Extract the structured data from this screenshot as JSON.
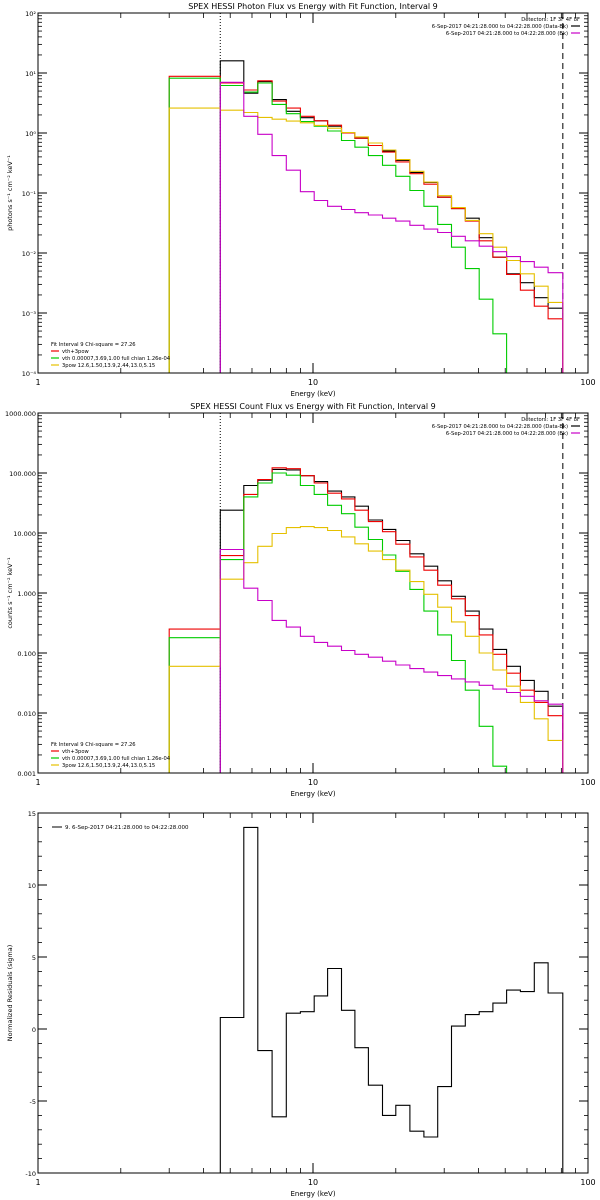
{
  "chart_data": [
    {
      "type": "line",
      "title": "SPEX HESSI Photon Flux vs Energy with Fit Function, Interval 9",
      "xlabel": "Energy (keV)",
      "ylabel": "photons s⁻¹ cm⁻² keV⁻¹",
      "xscale": "log",
      "yscale": "log",
      "xlim": [
        1,
        100
      ],
      "ylim": [
        0.0001,
        100
      ],
      "x_ticks": [
        {
          "v": 1,
          "label": "1"
        },
        {
          "v": 10,
          "label": "10"
        },
        {
          "v": 100,
          "label": "100"
        }
      ],
      "y_ticks": [
        {
          "v": 100,
          "label": "10²"
        },
        {
          "v": 10,
          "label": "10¹"
        },
        {
          "v": 1,
          "label": "10⁰"
        },
        {
          "v": 0.1,
          "label": "10⁻¹"
        },
        {
          "v": 0.01,
          "label": "10⁻²"
        },
        {
          "v": 0.001,
          "label": "10⁻³"
        },
        {
          "v": 0.0001,
          "label": "10⁻⁴"
        }
      ],
      "vlines": [
        {
          "x": 4.6,
          "style": "dotted"
        },
        {
          "x": 81,
          "style": "dashed"
        }
      ],
      "legend_top": [
        {
          "text": "Detectors: 1F 3F 4F 8F"
        },
        {
          "text": "6-Sep-2017 04:21:28.000 to 04:22:28.000 (Data-Bk)",
          "color": "#000000"
        },
        {
          "text": "6-Sep-2017 04:21:28.000 to 04:22:28.000 (Bk)",
          "color": "#c800c8"
        }
      ],
      "legend_bottom": [
        {
          "text": "Fit Interval 9   Chi-square = 27.26"
        },
        {
          "text": "vth+3pow",
          "color": "#ee0000"
        },
        {
          "text": "vth 0.00007,3.69,1.00  full chian 1.26e-04",
          "color": "#00cc00"
        },
        {
          "text": "3pow 12.6,1.50,13.9,2.44,13.0,5.15",
          "color": "#e5c000"
        }
      ],
      "series": [
        {
          "color": "#000000",
          "edges": [
            3.0,
            4.6,
            5.6,
            6.3,
            7.1,
            8.0,
            9.0,
            10.1,
            11.3,
            12.7,
            14.2,
            15.9,
            17.9,
            20.0,
            22.5,
            25.3,
            28.4,
            31.9,
            35.8,
            40.2,
            45.1,
            50.6,
            56.8,
            63.8,
            71.6,
            81.0
          ],
          "values": [
            0,
            16,
            4.6,
            7.2,
            3.6,
            2.3,
            1.8,
            1.6,
            1.3,
            1.0,
            0.82,
            0.62,
            0.5,
            0.35,
            0.22,
            0.15,
            0.085,
            0.055,
            0.038,
            0.018,
            0.0085,
            0.0045,
            0.0032,
            0.0018,
            0.0012
          ]
        },
        {
          "color": "#ee0000",
          "edges": [
            3.0,
            4.6,
            5.6,
            6.3,
            7.1,
            8.0,
            9.0,
            10.1,
            11.3,
            12.7,
            14.2,
            15.9,
            17.9,
            20.0,
            22.5,
            25.3,
            28.4,
            31.9,
            35.8,
            40.2,
            45.1,
            50.6,
            56.8,
            63.8,
            71.6,
            81.0
          ],
          "values": [
            8.8,
            6.8,
            5.2,
            7.4,
            3.4,
            2.6,
            1.9,
            1.6,
            1.35,
            1.0,
            0.82,
            0.62,
            0.48,
            0.33,
            0.21,
            0.14,
            0.085,
            0.055,
            0.034,
            0.016,
            0.0085,
            0.0044,
            0.0024,
            0.0013,
            0.0008
          ]
        },
        {
          "color": "#00cc00",
          "edges": [
            3.0,
            4.6,
            5.6,
            6.3,
            7.1,
            8.0,
            9.0,
            10.1,
            11.3,
            12.7,
            14.2,
            15.9,
            17.9,
            20.0,
            22.5,
            25.3,
            28.4,
            31.9,
            35.8,
            40.2,
            45.1,
            50.6
          ],
          "values": [
            8.2,
            6.2,
            4.8,
            6.8,
            3.0,
            2.1,
            1.55,
            1.3,
            1.08,
            0.75,
            0.58,
            0.42,
            0.29,
            0.19,
            0.11,
            0.06,
            0.03,
            0.0125,
            0.0055,
            0.0017,
            0.00045
          ]
        },
        {
          "color": "#e5c000",
          "edges": [
            3.0,
            4.6,
            5.6,
            6.3,
            7.1,
            8.0,
            9.0,
            10.1,
            11.3,
            12.7,
            14.2,
            15.9,
            17.9,
            20.0,
            22.5,
            25.3,
            28.4,
            31.9,
            35.8,
            40.2,
            45.1,
            50.6,
            56.8,
            63.8,
            71.6,
            81.0
          ],
          "values": [
            2.6,
            2.4,
            2.2,
            1.82,
            1.7,
            1.58,
            1.48,
            1.34,
            1.2,
            1.02,
            0.86,
            0.68,
            0.52,
            0.36,
            0.23,
            0.152,
            0.09,
            0.057,
            0.035,
            0.021,
            0.0125,
            0.0075,
            0.0045,
            0.0028,
            0.0015
          ]
        },
        {
          "color": "#c800c8",
          "edges": [
            4.6,
            5.6,
            6.3,
            7.1,
            8.0,
            9.0,
            10.1,
            11.3,
            12.7,
            14.2,
            15.9,
            17.9,
            20.0,
            22.5,
            25.3,
            28.4,
            31.9,
            35.8,
            40.2,
            45.1,
            50.6,
            56.8,
            63.8,
            71.6,
            81.0
          ],
          "values": [
            7.0,
            1.9,
            0.95,
            0.42,
            0.24,
            0.105,
            0.075,
            0.06,
            0.053,
            0.047,
            0.043,
            0.038,
            0.034,
            0.029,
            0.025,
            0.022,
            0.019,
            0.016,
            0.013,
            0.0105,
            0.0087,
            0.0072,
            0.0058,
            0.0047
          ]
        }
      ]
    },
    {
      "type": "line",
      "title": "SPEX HESSI Count Flux vs Energy with Fit Function, Interval 9",
      "xlabel": "Energy (keV)",
      "ylabel": "counts s⁻¹ cm⁻² keV⁻¹",
      "xscale": "log",
      "yscale": "log",
      "xlim": [
        1,
        100
      ],
      "ylim": [
        0.001,
        1000
      ],
      "x_ticks": [
        {
          "v": 1,
          "label": "1"
        },
        {
          "v": 10,
          "label": "10"
        },
        {
          "v": 100,
          "label": "100"
        }
      ],
      "y_ticks": [
        {
          "v": 1000,
          "label": "1000.000"
        },
        {
          "v": 100,
          "label": "100.000"
        },
        {
          "v": 10,
          "label": "10.000"
        },
        {
          "v": 1,
          "label": "1.000"
        },
        {
          "v": 0.1,
          "label": "0.100"
        },
        {
          "v": 0.01,
          "label": "0.010"
        },
        {
          "v": 0.001,
          "label": "0.001"
        }
      ],
      "vlines": [
        {
          "x": 4.6,
          "style": "dotted"
        },
        {
          "x": 81,
          "style": "dashed"
        }
      ],
      "legend_top": [
        {
          "text": "Detectors: 1F 3F 4F 8F"
        },
        {
          "text": "6-Sep-2017 04:21:28.000 to 04:22:28.000 (Data-Bk)",
          "color": "#000000"
        },
        {
          "text": "6-Sep-2017 04:21:28.000 to 04:22:28.000 (Bk)",
          "color": "#c800c8"
        }
      ],
      "legend_bottom": [
        {
          "text": "Fit Interval 9   Chi-square = 27.26"
        },
        {
          "text": "vth+3pow",
          "color": "#ee0000"
        },
        {
          "text": "vth 0.00007,3.69,1.00  full chian 1.26e-04",
          "color": "#00cc00"
        },
        {
          "text": "3pow 12.6,1.50,13.9,2.44,13.0,5.15",
          "color": "#e5c000"
        }
      ],
      "series": [
        {
          "color": "#000000",
          "edges": [
            4.6,
            5.6,
            6.3,
            7.1,
            8.0,
            9.0,
            10.1,
            11.3,
            12.7,
            14.2,
            15.9,
            17.9,
            20.0,
            22.5,
            25.3,
            28.4,
            31.9,
            35.8,
            40.2,
            45.1,
            50.6,
            56.8,
            63.8,
            71.6,
            81.0
          ],
          "values": [
            24,
            62,
            76,
            115,
            112,
            90,
            72,
            50,
            40,
            28,
            16.5,
            11.5,
            7.5,
            4.5,
            2.8,
            1.6,
            0.88,
            0.5,
            0.25,
            0.115,
            0.06,
            0.035,
            0.023,
            0.013
          ]
        },
        {
          "color": "#ee0000",
          "edges": [
            3.0,
            4.6,
            5.6,
            6.3,
            7.1,
            8.0,
            9.0,
            10.1,
            11.3,
            12.7,
            14.2,
            15.9,
            17.9,
            20.0,
            22.5,
            25.3,
            28.4,
            31.9,
            35.8,
            40.2,
            45.1,
            50.6,
            56.8,
            63.8,
            71.6,
            81.0
          ],
          "values": [
            0.25,
            4.2,
            44,
            78,
            122,
            118,
            90,
            68,
            46,
            37,
            24,
            15.5,
            10.5,
            6.5,
            4.0,
            2.4,
            1.35,
            0.8,
            0.42,
            0.2,
            0.095,
            0.046,
            0.024,
            0.015,
            0.009
          ]
        },
        {
          "color": "#00cc00",
          "edges": [
            3.0,
            4.6,
            5.6,
            6.3,
            7.1,
            8.0,
            9.0,
            10.1,
            11.3,
            12.7,
            14.2,
            15.9,
            17.9,
            20.0,
            22.5,
            25.3,
            28.4,
            31.9,
            35.8,
            40.2,
            45.1,
            50.6
          ],
          "values": [
            0.18,
            3.6,
            40,
            68,
            100,
            92,
            62,
            44,
            29,
            21,
            12.5,
            7.8,
            4.3,
            2.3,
            1.15,
            0.5,
            0.2,
            0.075,
            0.024,
            0.006,
            0.0013
          ]
        },
        {
          "color": "#e5c000",
          "edges": [
            3.0,
            4.6,
            5.6,
            6.3,
            7.1,
            8.0,
            9.0,
            10.1,
            11.3,
            12.7,
            14.2,
            15.9,
            17.9,
            20.0,
            22.5,
            25.3,
            28.4,
            31.9,
            35.8,
            40.2,
            45.1,
            50.6,
            56.8,
            63.8,
            71.6,
            81.0
          ],
          "values": [
            0.06,
            1.7,
            3.2,
            6.0,
            9.8,
            12.3,
            12.8,
            12.3,
            11.0,
            8.6,
            6.6,
            5.0,
            3.6,
            2.4,
            1.55,
            0.95,
            0.58,
            0.33,
            0.19,
            0.1,
            0.052,
            0.028,
            0.015,
            0.008,
            0.0035
          ]
        },
        {
          "color": "#c800c8",
          "edges": [
            4.6,
            5.6,
            6.3,
            7.1,
            8.0,
            9.0,
            10.1,
            11.3,
            12.7,
            14.2,
            15.9,
            17.9,
            20.0,
            22.5,
            25.3,
            28.4,
            31.9,
            35.8,
            40.2,
            45.1,
            50.6,
            56.8,
            63.8,
            71.6,
            81.0
          ],
          "values": [
            5.3,
            1.2,
            0.75,
            0.35,
            0.27,
            0.19,
            0.15,
            0.13,
            0.11,
            0.095,
            0.085,
            0.073,
            0.063,
            0.055,
            0.048,
            0.042,
            0.037,
            0.033,
            0.029,
            0.025,
            0.022,
            0.019,
            0.016,
            0.014
          ]
        }
      ]
    },
    {
      "type": "line",
      "title": "",
      "xlabel": "Energy (keV)",
      "ylabel": "Normalized Residuals (sigma)",
      "xscale": "log",
      "yscale": "linear",
      "xlim": [
        1,
        100
      ],
      "ylim": [
        -10,
        15
      ],
      "x_ticks": [
        {
          "v": 1,
          "label": "1"
        },
        {
          "v": 10,
          "label": "10"
        },
        {
          "v": 100,
          "label": "100"
        }
      ],
      "y_ticks": [
        {
          "v": 15,
          "label": "15"
        },
        {
          "v": 10,
          "label": "10"
        },
        {
          "v": 5,
          "label": "5"
        },
        {
          "v": 0,
          "label": "0"
        },
        {
          "v": -5,
          "label": "-5"
        },
        {
          "v": -10,
          "label": "-10"
        }
      ],
      "vlines": [],
      "legend_top": [],
      "legend_bottom": [],
      "legend_upper_left": "9.  6-Sep-2017 04:21:28.000 to 04:22:28.000",
      "series": [
        {
          "color": "#000000",
          "edges": [
            4.6,
            5.6,
            6.3,
            7.1,
            8.0,
            9.0,
            10.1,
            11.3,
            12.7,
            14.2,
            15.9,
            17.9,
            20.0,
            22.5,
            25.3,
            28.4,
            31.9,
            35.8,
            40.2,
            45.1,
            50.6,
            56.8,
            63.8,
            71.6,
            81.0
          ],
          "values": [
            0.8,
            14.0,
            -1.5,
            -6.1,
            1.1,
            1.2,
            2.3,
            4.2,
            1.3,
            -1.3,
            -3.9,
            -6.0,
            -5.3,
            -7.1,
            -7.5,
            -4.0,
            0.2,
            1.0,
            1.2,
            1.8,
            2.7,
            2.6,
            4.6,
            2.5
          ]
        }
      ]
    }
  ]
}
